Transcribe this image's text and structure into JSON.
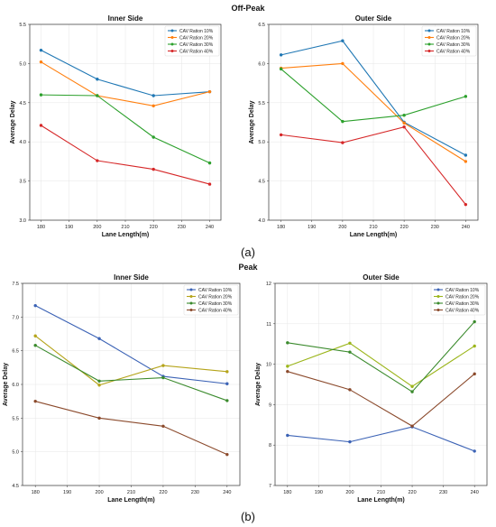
{
  "figure": {
    "group_titles": [
      "Off-Peak",
      "Peak"
    ],
    "caption_a": "(a)",
    "caption_b": "(b)"
  },
  "chart_data": [
    {
      "type": "line",
      "group": "Off-Peak",
      "title": "Inner Side",
      "xlabel": "Lane Length(m)",
      "ylabel": "Average Delay",
      "x": [
        180,
        200,
        220,
        240
      ],
      "xlim": [
        176,
        244
      ],
      "xticks": [
        180,
        190,
        200,
        210,
        220,
        230,
        240
      ],
      "ylim": [
        3.0,
        5.5
      ],
      "yticks": [
        "3.0",
        "3.5",
        "4.0",
        "4.5",
        "5.0",
        "5.5"
      ],
      "grid": true,
      "legend": "top-right",
      "series": [
        {
          "name": "CAV Ration 10%",
          "color": "#1f77b4",
          "values": [
            5.17,
            4.8,
            4.59,
            4.64
          ]
        },
        {
          "name": "CAV Ration 20%",
          "color": "#ff7f0e",
          "values": [
            5.02,
            4.59,
            4.46,
            4.64
          ]
        },
        {
          "name": "CAV Ration 30%",
          "color": "#2ca02c",
          "values": [
            4.6,
            4.59,
            4.06,
            3.73
          ]
        },
        {
          "name": "CAV Ration 40%",
          "color": "#d62728",
          "values": [
            4.21,
            3.76,
            3.65,
            3.46
          ]
        }
      ]
    },
    {
      "type": "line",
      "group": "Off-Peak",
      "title": "Outer Side",
      "xlabel": "Lane Length(m)",
      "ylabel": "Average Delay",
      "x": [
        180,
        200,
        220,
        240
      ],
      "xlim": [
        176,
        244
      ],
      "xticks": [
        180,
        190,
        200,
        210,
        220,
        230,
        240
      ],
      "ylim": [
        4.0,
        6.5
      ],
      "yticks": [
        "4.0",
        "4.5",
        "5.0",
        "5.5",
        "6.0",
        "6.5"
      ],
      "grid": true,
      "legend": "top-right",
      "series": [
        {
          "name": "CAV Ration 10%",
          "color": "#1f77b4",
          "values": [
            6.11,
            6.29,
            5.25,
            4.83
          ]
        },
        {
          "name": "CAV Ration 20%",
          "color": "#ff7f0e",
          "values": [
            5.94,
            6.0,
            5.24,
            4.75
          ]
        },
        {
          "name": "CAV Ration 30%",
          "color": "#2ca02c",
          "values": [
            5.93,
            5.26,
            5.34,
            5.58
          ]
        },
        {
          "name": "CAV Ration 40%",
          "color": "#d62728",
          "values": [
            5.09,
            4.99,
            5.19,
            4.2
          ]
        }
      ]
    },
    {
      "type": "line",
      "group": "Peak",
      "title": "Inner Side",
      "xlabel": "Lane Length(m)",
      "ylabel": "Average Delay",
      "x": [
        180,
        200,
        220,
        240
      ],
      "xlim": [
        176,
        244
      ],
      "xticks": [
        180,
        190,
        200,
        210,
        220,
        230,
        240
      ],
      "ylim": [
        4.5,
        7.5
      ],
      "yticks": [
        "4.5",
        "5.0",
        "5.5",
        "6.0",
        "6.5",
        "7.0",
        "7.5"
      ],
      "grid": true,
      "legend": "top-right",
      "series": [
        {
          "name": "CAV Ration 10%",
          "color": "#3b62b5",
          "values": [
            7.17,
            6.68,
            6.12,
            6.01
          ]
        },
        {
          "name": "CAV Ration 20%",
          "color": "#b5a41a",
          "values": [
            6.72,
            5.99,
            6.28,
            6.19
          ]
        },
        {
          "name": "CAV Ration 30%",
          "color": "#3a8a2c",
          "values": [
            6.58,
            6.05,
            6.1,
            5.76
          ]
        },
        {
          "name": "CAV Ration 40%",
          "color": "#8b4a2c",
          "values": [
            5.75,
            5.5,
            5.38,
            4.96
          ]
        }
      ]
    },
    {
      "type": "line",
      "group": "Peak",
      "title": "Outer Side",
      "xlabel": "Lane Length(m)",
      "ylabel": "Average Delay",
      "x": [
        180,
        200,
        220,
        240
      ],
      "xlim": [
        176,
        244
      ],
      "xticks": [
        180,
        190,
        200,
        210,
        220,
        230,
        240
      ],
      "ylim": [
        7,
        12
      ],
      "yticks": [
        "7",
        "8",
        "9",
        "10",
        "11",
        "12"
      ],
      "grid": true,
      "legend": "top-right",
      "series": [
        {
          "name": "CAV Ration 10%",
          "color": "#3b62b5",
          "values": [
            8.24,
            8.08,
            8.45,
            7.85
          ]
        },
        {
          "name": "CAV Ration 20%",
          "color": "#9bb51a",
          "values": [
            9.95,
            10.52,
            9.45,
            10.45
          ]
        },
        {
          "name": "CAV Ration 30%",
          "color": "#3a8a2c",
          "values": [
            10.53,
            10.3,
            9.32,
            11.05
          ]
        },
        {
          "name": "CAV Ration 40%",
          "color": "#8b4a2c",
          "values": [
            9.82,
            9.37,
            8.47,
            9.76
          ]
        }
      ]
    }
  ]
}
